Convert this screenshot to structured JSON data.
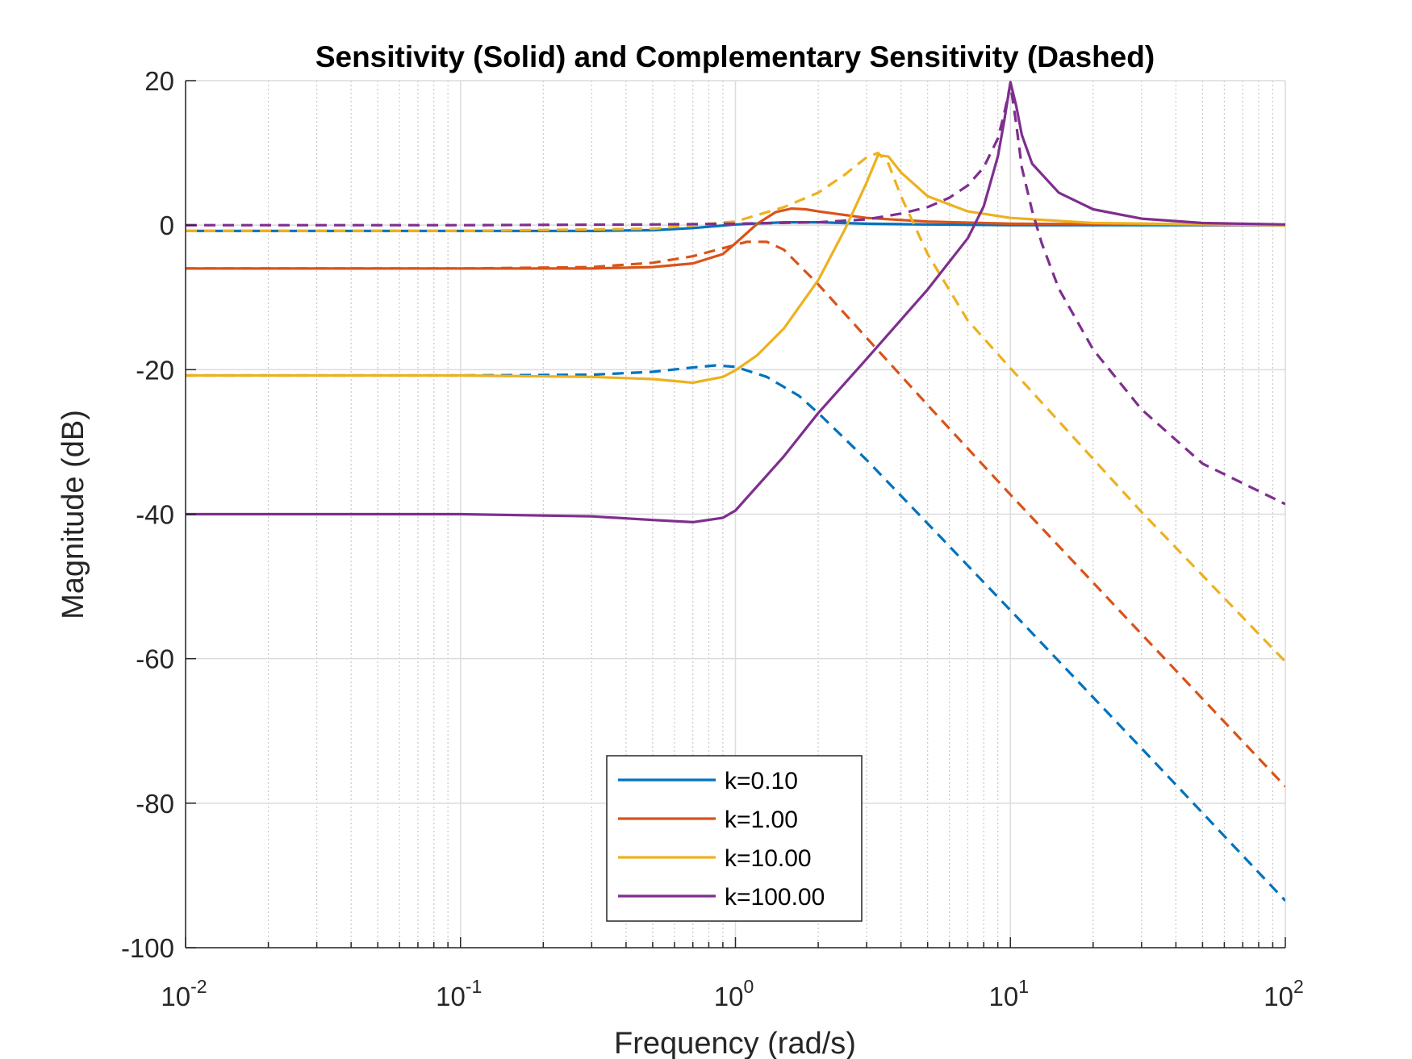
{
  "chart_data": {
    "type": "line",
    "title": "Sensitivity (Solid) and Complementary Sensitivity (Dashed)",
    "xlabel": "Frequency (rad/s)",
    "ylabel": "Magnitude (dB)",
    "xscale": "log",
    "xlim": [
      0.01,
      100
    ],
    "ylim": [
      -100,
      20
    ],
    "x_ticks": [
      {
        "base": "10",
        "exp": "-2",
        "value": 0.01
      },
      {
        "base": "10",
        "exp": "-1",
        "value": 0.1
      },
      {
        "base": "10",
        "exp": "0",
        "value": 1
      },
      {
        "base": "10",
        "exp": "1",
        "value": 10
      },
      {
        "base": "10",
        "exp": "2",
        "value": 100
      }
    ],
    "y_ticks": [
      "20",
      "0",
      "-20",
      "-40",
      "-60",
      "-80",
      "-100"
    ],
    "grid": true,
    "minor_grid": true,
    "legend_position": "bottom-center",
    "legend": [
      "k=0.10",
      "k=1.00",
      "k=10.00",
      "k=100.00"
    ],
    "series": [
      {
        "name": "k=0.10",
        "style": "solid",
        "color": "#0072BD",
        "x": [
          0.01,
          0.1,
          0.3,
          0.5,
          0.7,
          1,
          1.5,
          2,
          3,
          5,
          10,
          100
        ],
        "y": [
          -0.8,
          -0.8,
          -0.8,
          -0.7,
          -0.4,
          0.1,
          0.4,
          0.4,
          0.2,
          0.1,
          0,
          0
        ]
      },
      {
        "name": "k=0.10",
        "style": "dashed",
        "color": "#0072BD",
        "x": [
          0.01,
          0.1,
          0.3,
          0.5,
          0.7,
          0.85,
          1,
          1.3,
          1.7,
          2,
          3,
          5,
          10,
          30,
          100
        ],
        "y": [
          -20.8,
          -20.8,
          -20.7,
          -20.3,
          -19.7,
          -19.4,
          -19.6,
          -21,
          -23.6,
          -26,
          -32.5,
          -41.3,
          -53.3,
          -72.4,
          -93.5
        ]
      },
      {
        "name": "k=1.00",
        "style": "solid",
        "color": "#D95319",
        "x": [
          0.01,
          0.1,
          0.3,
          0.5,
          0.7,
          0.9,
          1,
          1.2,
          1.4,
          1.6,
          1.8,
          2,
          3,
          5,
          10,
          100
        ],
        "y": [
          -6,
          -6,
          -6,
          -5.8,
          -5.3,
          -4,
          -2.5,
          0.2,
          1.8,
          2.3,
          2.2,
          1.9,
          1,
          0.5,
          0.2,
          0
        ]
      },
      {
        "name": "k=1.00",
        "style": "dashed",
        "color": "#D95319",
        "x": [
          0.01,
          0.1,
          0.3,
          0.5,
          0.7,
          0.9,
          1.1,
          1.3,
          1.5,
          2,
          3,
          5,
          10,
          30,
          100
        ],
        "y": [
          -6,
          -6,
          -5.8,
          -5.2,
          -4.3,
          -3.2,
          -2.3,
          -2.3,
          -3.4,
          -8.2,
          -15.6,
          -24.9,
          -37.3,
          -56.6,
          -77.7
        ]
      },
      {
        "name": "k=10.00",
        "style": "solid",
        "color": "#EDB120",
        "x": [
          0.01,
          0.1,
          0.3,
          0.5,
          0.7,
          0.9,
          1,
          1.2,
          1.5,
          2,
          2.5,
          3,
          3.3,
          3.6,
          4,
          5,
          7,
          10,
          20,
          100
        ],
        "y": [
          -20.8,
          -20.8,
          -21,
          -21.3,
          -21.8,
          -21,
          -20.1,
          -18,
          -14.3,
          -7.6,
          -0.6,
          5.9,
          9.7,
          9.5,
          7.3,
          4,
          1.9,
          1,
          0.3,
          0
        ]
      },
      {
        "name": "k=10.00",
        "style": "dashed",
        "color": "#EDB120",
        "x": [
          0.01,
          0.1,
          0.5,
          1,
          1.5,
          2,
          2.5,
          3,
          3.3,
          3.6,
          4,
          5,
          7,
          10,
          30,
          100
        ],
        "y": [
          -0.8,
          -0.8,
          -0.5,
          0.5,
          2.5,
          4.5,
          7,
          9.4,
          10,
          8.5,
          4,
          -4,
          -13.2,
          -19.8,
          -39.7,
          -60.4
        ]
      },
      {
        "name": "k=100.00",
        "style": "solid",
        "color": "#7E2F8E",
        "x": [
          0.01,
          0.1,
          0.3,
          0.5,
          0.7,
          0.9,
          1,
          1.5,
          2,
          3,
          5,
          7,
          8,
          9,
          9.5,
          10,
          10.5,
          11,
          12,
          15,
          20,
          30,
          50,
          100
        ],
        "y": [
          -40,
          -40,
          -40.3,
          -40.8,
          -41.1,
          -40.5,
          -39.5,
          -32,
          -26,
          -18.5,
          -8.9,
          -1.8,
          2.6,
          9.5,
          14.5,
          19.8,
          16.5,
          12.5,
          8.5,
          4.5,
          2.2,
          0.9,
          0.3,
          0.1
        ]
      },
      {
        "name": "k=100.00",
        "style": "dashed",
        "color": "#7E2F8E",
        "x": [
          0.01,
          0.1,
          0.5,
          1,
          2,
          3,
          4,
          5,
          6,
          7,
          8,
          9,
          9.5,
          10,
          10.5,
          11,
          12,
          13,
          15,
          20,
          30,
          50,
          100
        ],
        "y": [
          0,
          0,
          0.1,
          0.2,
          0.4,
          0.8,
          1.6,
          2.5,
          3.8,
          5.5,
          8,
          12,
          15.5,
          19.5,
          14,
          8,
          2,
          -2.5,
          -8.8,
          -17.2,
          -25.5,
          -33,
          -38.6
        ]
      }
    ]
  }
}
